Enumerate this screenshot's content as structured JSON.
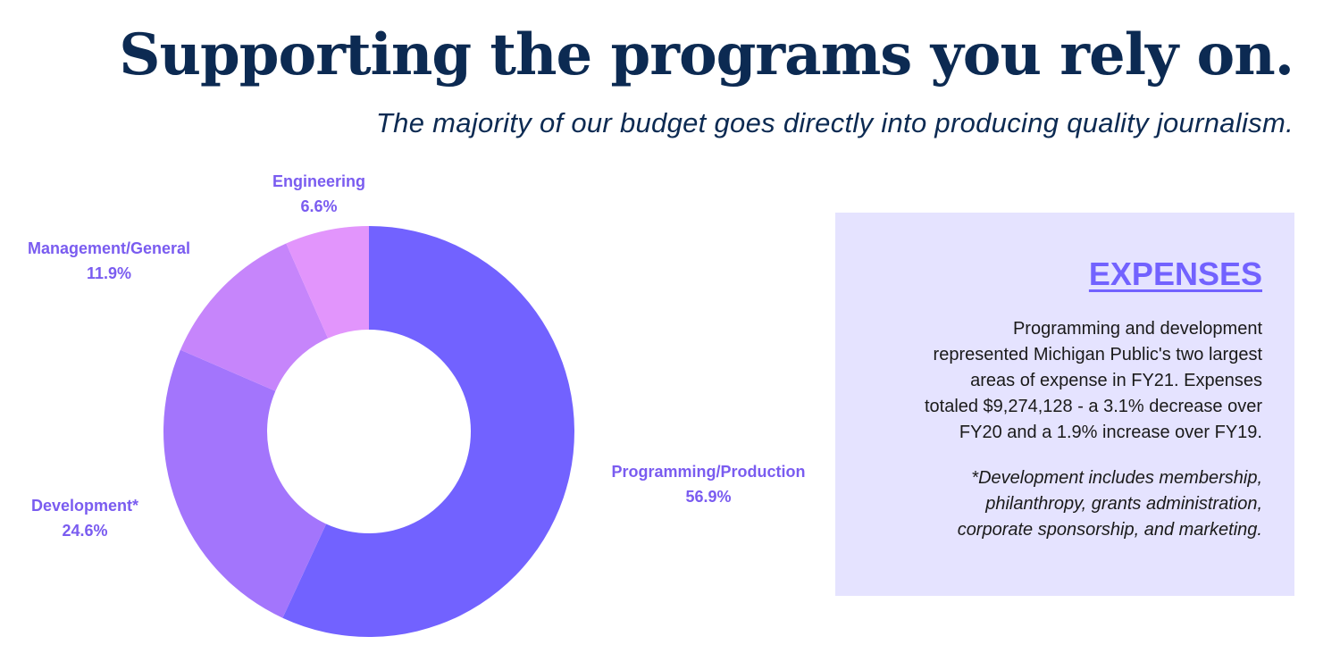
{
  "header": {
    "title": "Supporting the programs you rely on.",
    "subtitle": "The majority of our budget goes directly into producing quality journalism."
  },
  "chart_data": {
    "type": "pie",
    "style": "donut",
    "label_color": "#7a5cf0",
    "slices": [
      {
        "label": "Programming/Production",
        "value": 56.9,
        "value_label": "56.9%",
        "color": "#7262ff"
      },
      {
        "label": "Development*",
        "value": 24.6,
        "value_label": "24.6%",
        "color": "#a375fc"
      },
      {
        "label": "Management/General",
        "value": 11.9,
        "value_label": "11.9%",
        "color": "#c685fb"
      },
      {
        "label": "Engineering",
        "value": 6.6,
        "value_label": "6.6%",
        "color": "#e295fc"
      }
    ]
  },
  "panel": {
    "heading": "EXPENSES",
    "heading_color": "#7262ff",
    "body_lines": [
      "Programming and development",
      "represented Michigan Public's two largest",
      "areas of expense in FY21. Expenses",
      "totaled $9,274,128 - a 3.1% decrease over",
      "FY20 and a 1.9% increase over FY19."
    ],
    "note_lines": [
      "*Development includes membership,",
      "philanthropy, grants administration,",
      "corporate sponsorship, and marketing."
    ],
    "background": "#e5e3ff"
  }
}
